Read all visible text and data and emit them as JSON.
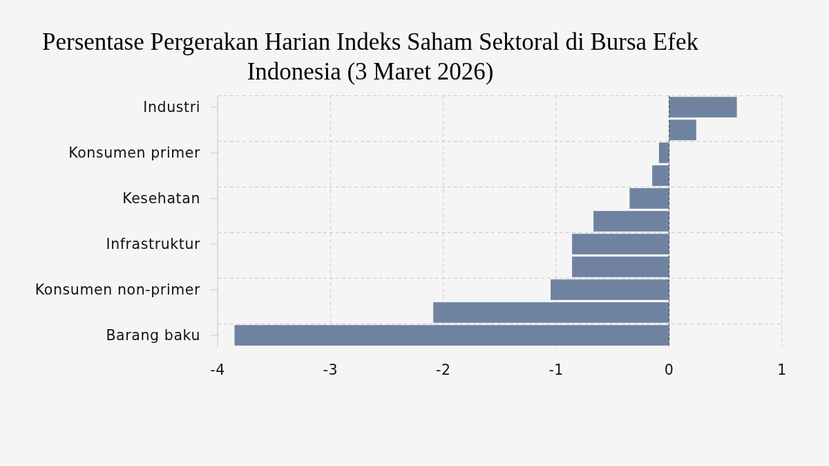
{
  "chart_data": {
    "type": "bar",
    "orientation": "horizontal",
    "title": "Persentase Pergerakan Harian Indeks Saham Sektoral di Bursa Efek Indonesia (3 Maret 2026)",
    "categories": [
      "Industri",
      null,
      "Konsumen primer",
      null,
      "Kesehatan",
      null,
      "Infrastruktur",
      null,
      "Konsumen non-primer",
      null,
      "Barang baku"
    ],
    "values": [
      0.6,
      0.24,
      -0.09,
      -0.15,
      -0.35,
      -0.67,
      -0.86,
      -0.86,
      -1.05,
      -2.09,
      -3.85
    ],
    "color": "#6f83a0",
    "xlim": [
      -4,
      1
    ],
    "xticks": [
      -4,
      -3,
      -2,
      -1,
      0,
      1
    ],
    "grid": true,
    "ref_lines": [
      {
        "axis": "x",
        "value": 0,
        "color": "#444444",
        "line_style": "dashed"
      }
    ]
  }
}
